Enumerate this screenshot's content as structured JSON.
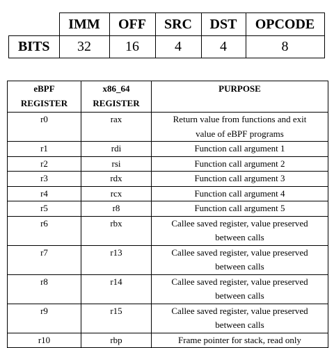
{
  "instruction_format": {
    "row_label": "BITS",
    "fields": [
      {
        "name": "IMM",
        "bits": "32"
      },
      {
        "name": "OFF",
        "bits": "16"
      },
      {
        "name": "SRC",
        "bits": "4"
      },
      {
        "name": "DST",
        "bits": "4"
      },
      {
        "name": "OPCODE",
        "bits": "8"
      }
    ]
  },
  "register_table": {
    "headers": {
      "ebpf_line1": "eBPF",
      "ebpf_line2": "REGISTER",
      "x86_line1": "x86_64",
      "x86_line2": "REGISTER",
      "purpose": "PURPOSE"
    },
    "rows": [
      {
        "ebpf": "r0",
        "x86": "rax",
        "purpose_line1": "Return value from functions and exit",
        "purpose_line2": "value of eBPF programs"
      },
      {
        "ebpf": "r1",
        "x86": "rdi",
        "purpose_line1": "Function call argument 1",
        "purpose_line2": ""
      },
      {
        "ebpf": "r2",
        "x86": "rsi",
        "purpose_line1": "Function call argument 2",
        "purpose_line2": ""
      },
      {
        "ebpf": "r3",
        "x86": "rdx",
        "purpose_line1": "Function call argument 3",
        "purpose_line2": ""
      },
      {
        "ebpf": "r4",
        "x86": "rcx",
        "purpose_line1": "Function call argument 4",
        "purpose_line2": ""
      },
      {
        "ebpf": "r5",
        "x86": "r8",
        "purpose_line1": "Function call argument 5",
        "purpose_line2": ""
      },
      {
        "ebpf": "r6",
        "x86": "rbx",
        "purpose_line1": "Callee saved register, value preserved",
        "purpose_line2": "between calls"
      },
      {
        "ebpf": "r7",
        "x86": "r13",
        "purpose_line1": "Callee saved register, value preserved",
        "purpose_line2": "between calls"
      },
      {
        "ebpf": "r8",
        "x86": "r14",
        "purpose_line1": "Callee saved register, value preserved",
        "purpose_line2": "between calls"
      },
      {
        "ebpf": "r9",
        "x86": "r15",
        "purpose_line1": "Callee saved register, value preserved",
        "purpose_line2": "between calls"
      },
      {
        "ebpf": "r10",
        "x86": "rbp",
        "purpose_line1": "Frame pointer for stack, read only",
        "purpose_line2": ""
      }
    ]
  }
}
